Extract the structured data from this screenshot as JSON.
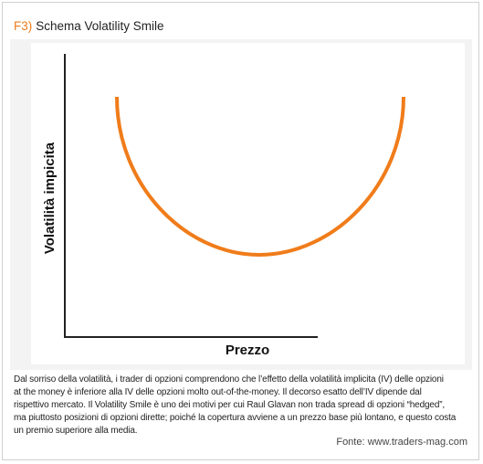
{
  "header": {
    "tag": "F3)",
    "title": "Schema Volatility Smile"
  },
  "diagram": {
    "y_axis_label": "Volatilità impicita",
    "x_axis_label": "Prezzo"
  },
  "caption": {
    "lines": [
      "Dal sorriso della volatilità, i trader di opzioni comprendono che l’effetto della volatilità implicita (IV) delle opzioni",
      "at the money è inferiore alla IV delle opzioni molto out-of-the-money. Il decorso esatto dell’IV dipende dal",
      "rispettivo mercato. Il Volatility Smile è uno dei motivi per cui Raul Glavan non trada spread di opzioni “hedged”,",
      "ma piuttosto posizioni di opzioni dirette; poiché la copertura avviene a un prezzo base più lontano, e questo costa",
      "un premio superiore alla media."
    ]
  },
  "source": "Fonte: www.traders-mag.com"
}
